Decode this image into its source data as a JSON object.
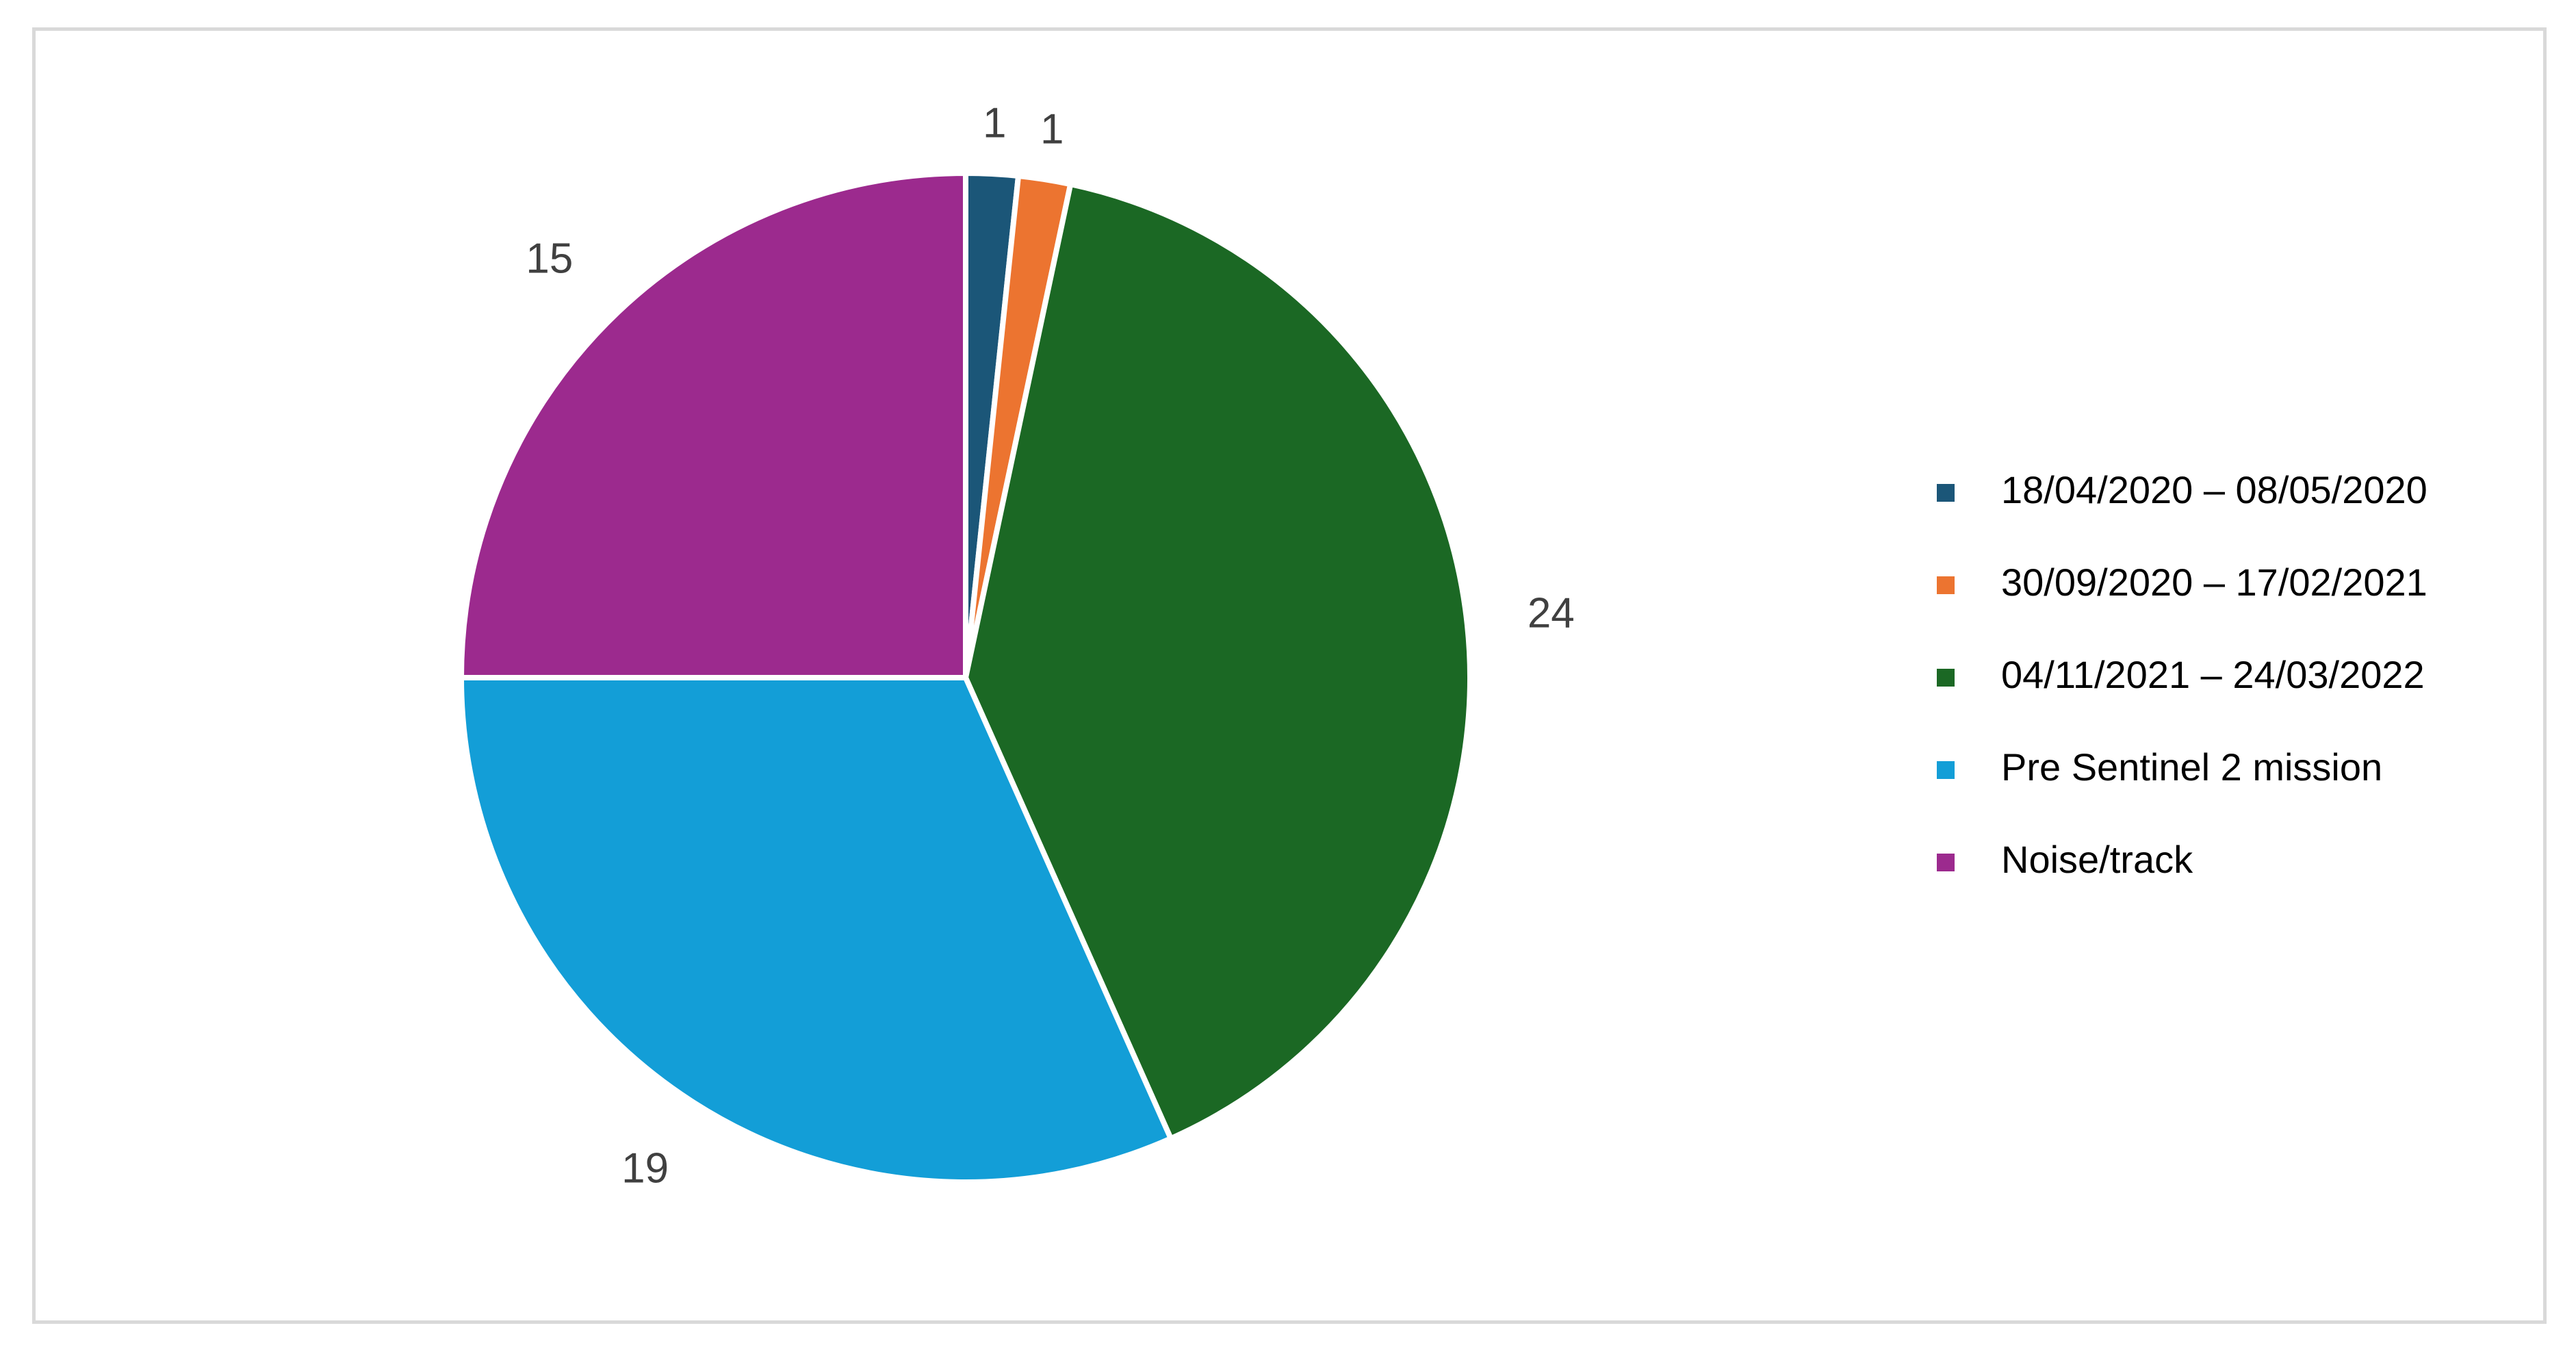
{
  "chart_data": {
    "type": "pie",
    "categories": [
      "18/04/2020 – 08/05/2020",
      "30/09/2020 – 17/02/2021",
      "04/11/2021 – 24/03/2022",
      "Pre Sentinel 2 mission",
      "Noise/track"
    ],
    "values": [
      1,
      1,
      24,
      19,
      15
    ],
    "colors": [
      "#1b5678",
      "#ec7430",
      "#1b6824",
      "#139ed7",
      "#9c2a8e"
    ],
    "title": "",
    "legend_position": "right",
    "data_labels": true,
    "start_angle_deg": 0,
    "direction": "clockwise"
  }
}
